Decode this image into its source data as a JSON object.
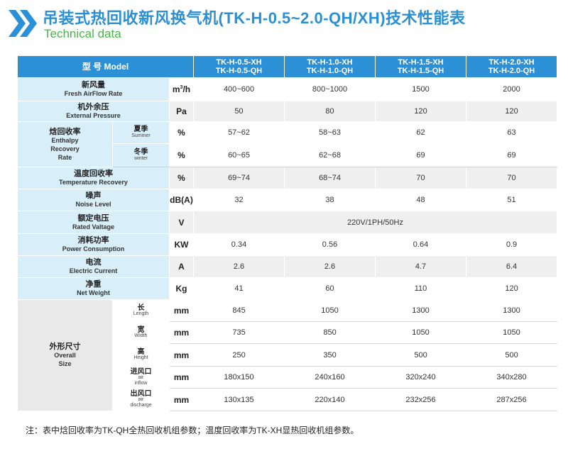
{
  "header": {
    "title": "吊装式热回收新风换气机(TK-H-0.5~2.0-QH/XH)技术性能表",
    "subtitle": "Technical data"
  },
  "table": {
    "model_label": "型 号 Model",
    "models": [
      {
        "line1": "TK-H-0.5-XH",
        "line2": "TK-H-0.5-QH"
      },
      {
        "line1": "TK-H-1.0-XH",
        "line2": "TK-H-1.0-QH"
      },
      {
        "line1": "TK-H-1.5-XH",
        "line2": "TK-H-1.5-QH"
      },
      {
        "line1": "TK-H-2.0-XH",
        "line2": "TK-H-2.0-QH"
      }
    ],
    "airflow": {
      "cn": "新风量",
      "en": "Fresh AirFlow Rate",
      "unit_base": "m",
      "unit_sup": "3",
      "unit_tail": "/h",
      "values": [
        "400~600",
        "800~1000",
        "1500",
        "2000"
      ]
    },
    "pressure": {
      "cn": "机外余压",
      "en": "External Pressure",
      "unit": "Pa",
      "values": [
        "50",
        "80",
        "120",
        "120"
      ]
    },
    "enthalpy": {
      "cn": "焓回收率",
      "en1": "Enthalpy",
      "en2": "Recovery",
      "en3": "Rate",
      "summer": {
        "cn": "夏季",
        "en": "Summer",
        "unit": "%",
        "values": [
          "57~62",
          "58~63",
          "62",
          "63"
        ]
      },
      "winter": {
        "cn": "冬季",
        "en": "winter",
        "unit": "%",
        "values": [
          "60~65",
          "62~68",
          "69",
          "69"
        ]
      }
    },
    "temp": {
      "cn": "温度回收率",
      "en": "Temperature Recovery",
      "unit": "%",
      "values": [
        "69~74",
        "68~74",
        "70",
        "70"
      ]
    },
    "noise": {
      "cn": "噪声",
      "en": "Noise Level",
      "unit": "dB(A)",
      "values": [
        "32",
        "38",
        "48",
        "51"
      ]
    },
    "voltage": {
      "cn": "额定电压",
      "en": "Rated Valtage",
      "unit": "V",
      "value": "220V/1PH/50Hz"
    },
    "power": {
      "cn": "消耗功率",
      "en": "Power Consumption",
      "unit": "KW",
      "values": [
        "0.34",
        "0.56",
        "0.64",
        "0.9"
      ]
    },
    "current": {
      "cn": "电流",
      "en": "Electric Current",
      "unit": "A",
      "values": [
        "2.6",
        "2.6",
        "4.7",
        "6.4"
      ]
    },
    "weight": {
      "cn": "净重",
      "en": "Net Weight",
      "unit": "Kg",
      "values": [
        "41",
        "60",
        "110",
        "120"
      ]
    },
    "size": {
      "cn": "外形尺寸",
      "en1": "Overall",
      "en2": "Size",
      "length": {
        "cn": "长",
        "en": "Length",
        "unit": "mm",
        "values": [
          "845",
          "1050",
          "1300",
          "1300"
        ]
      },
      "width": {
        "cn": "宽",
        "en": "Width",
        "unit": "mm",
        "values": [
          "735",
          "850",
          "1050",
          "1050"
        ]
      },
      "height": {
        "cn": "高",
        "en": "Height",
        "unit": "mm",
        "values": [
          "250",
          "350",
          "500",
          "500"
        ]
      },
      "inflow": {
        "cn": "进风口",
        "en1": "air",
        "en2": "inflow",
        "unit": "mm",
        "values": [
          "180x150",
          "240x160",
          "320x240",
          "340x280"
        ]
      },
      "discharge": {
        "cn": "出风口",
        "en1": "air",
        "en2": "discharge",
        "unit": "mm",
        "values": [
          "130x135",
          "220x140",
          "232x256",
          "287x256"
        ]
      }
    }
  },
  "note": "注：表中焓回收率为TK-QH全热回收机组参数；温度回收率为TK-XH显热回收机组参数。",
  "colors": {
    "accent": "#2b90d5",
    "green": "#49b44a",
    "label_bg": "#d8eef9"
  }
}
